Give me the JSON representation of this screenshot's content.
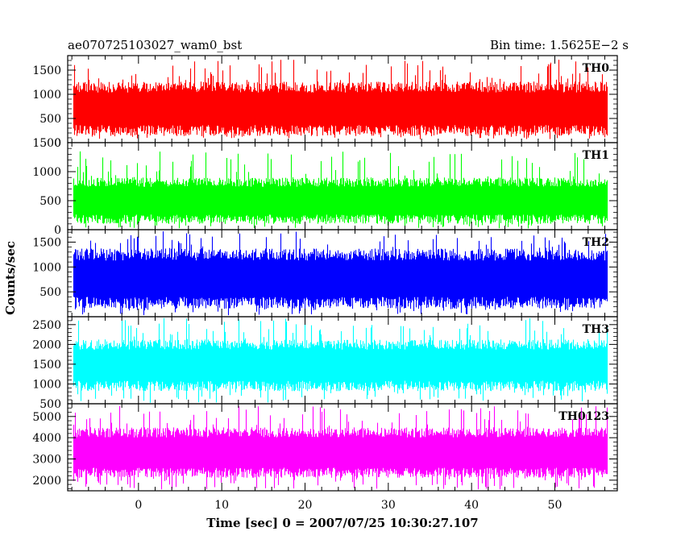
{
  "header": {
    "left_title": "ae070725103027_wam0_bst",
    "right_title": "Bin time: 1.5625E−2 s"
  },
  "chart_data": {
    "type": "line",
    "x_axis": {
      "label": "Time [sec] 0 = 2007/07/25 10:30:27.107",
      "range": [
        -8.5,
        57.5
      ],
      "ticks": [
        0,
        10,
        20,
        30,
        40,
        50
      ]
    },
    "y_axis_label": "Counts/sec",
    "data_x_range": [
      -7.8,
      56.2
    ],
    "series": [
      {
        "name": "TH0",
        "color": "#ff0000",
        "ylim": [
          0,
          1800
        ],
        "ticks": [
          0,
          500,
          1000,
          1500
        ],
        "typical_range": [
          250,
          1150
        ],
        "extreme_range": [
          70,
          1720
        ],
        "mean": 700
      },
      {
        "name": "TH1",
        "color": "#00ff00",
        "ylim": [
          0,
          1500
        ],
        "ticks": [
          0,
          500,
          1000,
          1500
        ],
        "typical_range": [
          180,
          820
        ],
        "extreme_range": [
          20,
          1350
        ],
        "mean": 500
      },
      {
        "name": "TH2",
        "color": "#0000ff",
        "ylim": [
          0,
          1750
        ],
        "ticks": [
          500,
          1000,
          1500
        ],
        "typical_range": [
          280,
          1250
        ],
        "extreme_range": [
          30,
          1720
        ],
        "mean": 760
      },
      {
        "name": "TH3",
        "color": "#00ffff",
        "ylim": [
          500,
          2700
        ],
        "ticks": [
          500,
          1000,
          1500,
          2000,
          2500
        ],
        "typical_range": [
          950,
          2000
        ],
        "extreme_range": [
          520,
          2680
        ],
        "mean": 1470
      },
      {
        "name": "TH0123",
        "color": "#ff00ff",
        "ylim": [
          1500,
          5600
        ],
        "ticks": [
          2000,
          3000,
          4000,
          5000
        ],
        "typical_range": [
          2350,
          4250
        ],
        "extreme_range": [
          1550,
          5500
        ],
        "mean": 3300
      }
    ]
  }
}
